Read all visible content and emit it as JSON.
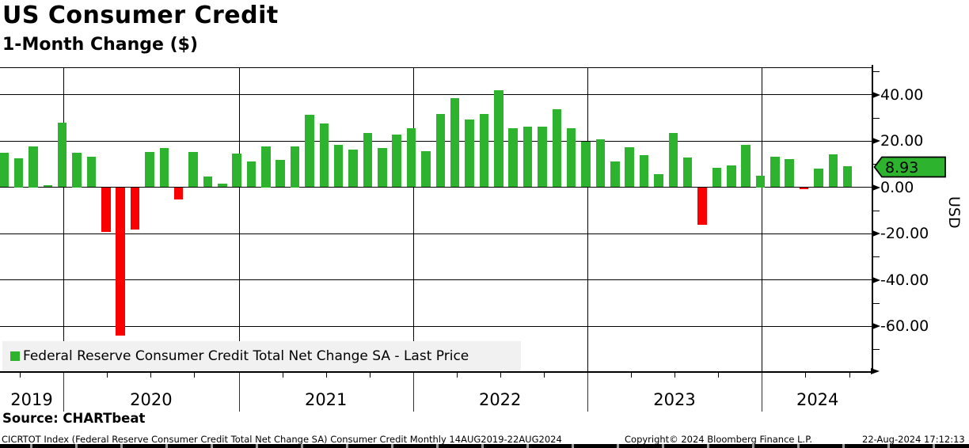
{
  "header": {
    "title": "US Consumer Credit",
    "subtitle": "1-Month Change ($)"
  },
  "legend": {
    "label": "Federal Reserve Consumer Credit Total Net Change SA - Last Price",
    "swatch_color": "#2db32d"
  },
  "y_axis": {
    "unit": "USD",
    "tick_labels": [
      "40.00",
      "20.00",
      "0.00",
      "-20.00",
      "-40.00",
      "-60.00"
    ],
    "tick_values": [
      40,
      20,
      0,
      -20,
      -40,
      -60
    ],
    "minor_tick_values": [
      50,
      30,
      10,
      -10,
      -30,
      -50,
      -70
    ],
    "last_price_label": "8.93"
  },
  "x_axis": {
    "year_labels": [
      "2019",
      "2020",
      "2021",
      "2022",
      "2023",
      "2024"
    ]
  },
  "footer": {
    "source": "Source: CHARTbeat",
    "description": "CICRTOT Index (Federal Reserve Consumer Credit Total Net Change SA) Consumer Credit  Monthly 14AUG2019-22AUG2024",
    "copyright": "Copyright© 2024 Bloomberg Finance L.P.",
    "timestamp": "22-Aug-2024 17:12:13"
  },
  "chart_data": {
    "type": "bar",
    "title": "US Consumer Credit",
    "subtitle": "1-Month Change ($)",
    "xlabel": "",
    "ylabel": "USD",
    "ylim": [
      -79.7,
      52
    ],
    "grid": true,
    "legend_position": "bottom-left",
    "last_price": 8.93,
    "colors": {
      "positive": "#2db32d",
      "negative": "#fa0000"
    },
    "categories": [
      "Aug 2019",
      "Sep 2019",
      "Oct 2019",
      "Nov 2019",
      "Dec 2019",
      "Jan 2020",
      "Feb 2020",
      "Mar 2020",
      "Apr 2020",
      "May 2020",
      "Jun 2020",
      "Jul 2020",
      "Aug 2020",
      "Sep 2020",
      "Oct 2020",
      "Nov 2020",
      "Dec 2020",
      "Jan 2021",
      "Feb 2021",
      "Mar 2021",
      "Apr 2021",
      "May 2021",
      "Jun 2021",
      "Jul 2021",
      "Aug 2021",
      "Sep 2021",
      "Oct 2021",
      "Nov 2021",
      "Dec 2021",
      "Jan 2022",
      "Feb 2022",
      "Mar 2022",
      "Apr 2022",
      "May 2022",
      "Jun 2022",
      "Jul 2022",
      "Aug 2022",
      "Sep 2022",
      "Oct 2022",
      "Nov 2022",
      "Dec 2022",
      "Jan 2023",
      "Feb 2023",
      "Mar 2023",
      "Apr 2023",
      "May 2023",
      "Jun 2023",
      "Jul 2023",
      "Aug 2023",
      "Sep 2023",
      "Oct 2023",
      "Nov 2023",
      "Dec 2023",
      "Jan 2024",
      "Feb 2024",
      "Mar 2024",
      "Apr 2024",
      "May 2024",
      "Jun 2024"
    ],
    "values": [
      14.8,
      12.5,
      17.5,
      0.7,
      28.0,
      15.0,
      13.3,
      -19.2,
      -64.0,
      -18.4,
      15.2,
      17.0,
      -5.4,
      15.2,
      4.5,
      1.5,
      14.5,
      11.2,
      17.5,
      11.9,
      17.5,
      31.2,
      27.6,
      18.4,
      16.1,
      23.3,
      16.9,
      22.6,
      25.4,
      15.4,
      31.5,
      38.6,
      29.2,
      31.5,
      42.0,
      25.5,
      26.3,
      26.3,
      33.8,
      25.5,
      19.7,
      20.6,
      11.2,
      17.4,
      14.0,
      5.6,
      23.5,
      12.7,
      -16.1,
      8.5,
      9.3,
      18.4,
      5.0,
      13.1,
      12.2,
      -1.0,
      7.9,
      14.2,
      8.93
    ]
  }
}
